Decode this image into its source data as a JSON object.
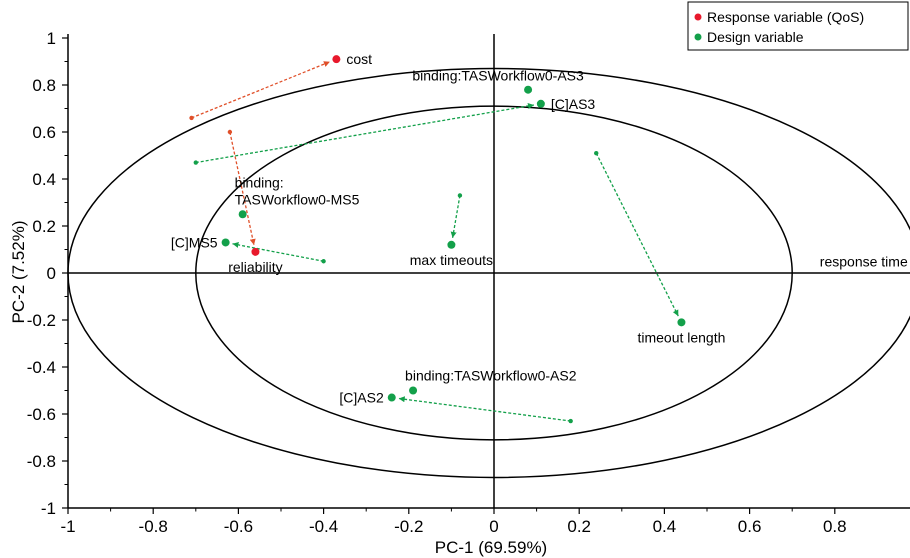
{
  "chart_data": {
    "type": "scatter",
    "xlabel": "PC-1 (69.59%)",
    "ylabel": "PC-2 (7.52%)",
    "xlim": [
      -1,
      1
    ],
    "ylim": [
      -1,
      1
    ],
    "x_ticks": [
      "-1",
      "-0.8",
      "-0.6",
      "-0.4",
      "-0.2",
      "0",
      "0.2",
      "0.4",
      "0.6",
      "0.8"
    ],
    "y_ticks": [
      "1",
      "0.8",
      "0.6",
      "0.4",
      "0.2",
      "0",
      "-0.2",
      "-0.4",
      "-0.6",
      "-0.8",
      "-1"
    ],
    "ellipses": [
      {
        "rx": 1.0,
        "ry": 0.87
      },
      {
        "rx": 0.7,
        "ry": 0.71
      }
    ],
    "legend": {
      "placement": "top-right",
      "entries": [
        {
          "label": "Response variable (QoS)",
          "color": "#e8192c"
        },
        {
          "label": "Design variable",
          "color": "#13a04a"
        }
      ]
    },
    "series": [
      {
        "name": "Response variable (QoS)",
        "color": "#e8192c",
        "line_color": "#e0502a",
        "points": [
          {
            "label": "cost",
            "x": -0.37,
            "y": 0.91,
            "from_x": -0.71,
            "from_y": 0.66,
            "label_pos": "right"
          },
          {
            "label": "reliability",
            "x": -0.56,
            "y": 0.09,
            "from_x": -0.62,
            "from_y": 0.6,
            "label_pos": "below"
          },
          {
            "label": "response time",
            "x": 0.99,
            "y": 0.05,
            "from_x": null,
            "from_y": null,
            "label_pos": "left"
          }
        ]
      },
      {
        "name": "Design variable",
        "color": "#13a04a",
        "line_color": "#13a04a",
        "points": [
          {
            "label": "binding:TASWorkflow0-AS3",
            "x": 0.08,
            "y": 0.78,
            "from_x": null,
            "from_y": null,
            "label_pos": "above"
          },
          {
            "label": "[C]AS3",
            "x": 0.11,
            "y": 0.72,
            "from_x": -0.7,
            "from_y": 0.47,
            "label_pos": "right"
          },
          {
            "label": "binding:\nTASWorkflow0-MS5",
            "x": -0.59,
            "y": 0.25,
            "from_x": null,
            "from_y": null,
            "label_pos": "above-right"
          },
          {
            "label": "[C]MS5",
            "x": -0.63,
            "y": 0.13,
            "from_x": -0.4,
            "from_y": 0.05,
            "label_pos": "left"
          },
          {
            "label": "max timeouts",
            "x": -0.1,
            "y": 0.12,
            "from_x": -0.08,
            "from_y": 0.33,
            "label_pos": "below"
          },
          {
            "label": "timeout length",
            "x": 0.44,
            "y": -0.21,
            "from_x": 0.24,
            "from_y": 0.51,
            "label_pos": "below"
          },
          {
            "label": "binding:TASWorkflow0-AS2",
            "x": -0.19,
            "y": -0.5,
            "from_x": null,
            "from_y": null,
            "label_pos": "above-right"
          },
          {
            "label": "[C]AS2",
            "x": -0.24,
            "y": -0.53,
            "from_x": 0.18,
            "from_y": -0.63,
            "label_pos": "left"
          }
        ]
      }
    ]
  }
}
